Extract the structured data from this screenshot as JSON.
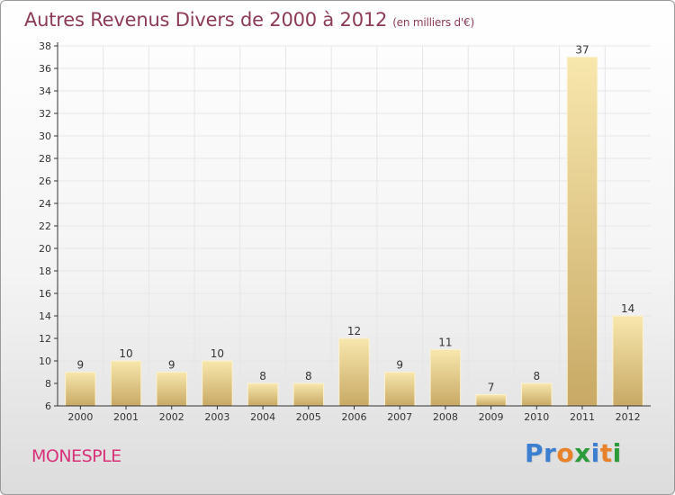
{
  "header": {
    "title": "Autres Revenus Divers de 2000 à 2012",
    "unit_note": "(en milliers d'€)"
  },
  "footer": {
    "commune": "MONESPLE",
    "logo_text": "Proxiti",
    "logo_letters": [
      {
        "ch": "P",
        "color": "#3c7fd1"
      },
      {
        "ch": "r",
        "color": "#3c7fd1"
      },
      {
        "ch": "o",
        "color": "#e8822a"
      },
      {
        "ch": "x",
        "color": "#2c9b3a"
      },
      {
        "ch": "i",
        "color": "#3c7fd1"
      },
      {
        "ch": "t",
        "color": "#e8822a"
      },
      {
        "ch": "i",
        "color": "#2c9b3a"
      }
    ]
  },
  "chart_data": {
    "type": "bar",
    "title": "Autres Revenus Divers de 2000 à 2012",
    "subtitle": "(en milliers d'€)",
    "categories": [
      "2000",
      "2001",
      "2002",
      "2003",
      "2004",
      "2005",
      "2006",
      "2007",
      "2008",
      "2009",
      "2010",
      "2011",
      "2012"
    ],
    "values": [
      9,
      10,
      9,
      10,
      8,
      8,
      12,
      9,
      11,
      7,
      8,
      37,
      14
    ],
    "ylim": [
      6,
      38
    ],
    "yticks": [
      6,
      8,
      10,
      12,
      14,
      16,
      18,
      20,
      22,
      24,
      26,
      28,
      30,
      32,
      34,
      36,
      38
    ],
    "grid": true,
    "data_labels": true,
    "colors": {
      "title": "#8c3a57",
      "commune": "#d9307a",
      "bar_light": "#f6e3a6",
      "bar_dark": "#c9aa66",
      "grid": "#e6e6e6",
      "axis": "#333333"
    }
  }
}
